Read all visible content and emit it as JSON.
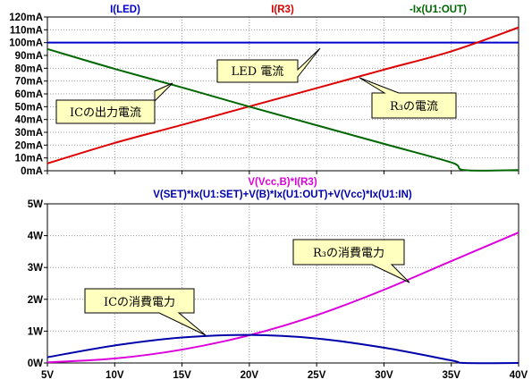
{
  "chart_data": [
    {
      "type": "line",
      "titles": [
        {
          "text": "I(LED)",
          "color": "#0000cc"
        },
        {
          "text": "I(R3)",
          "color": "#dd0000"
        },
        {
          "text": "-Ix(U1:OUT)",
          "color": "#006600"
        }
      ],
      "xlabel": "",
      "ylabel": "",
      "xlim": [
        5,
        40
      ],
      "ylim": [
        0,
        120
      ],
      "y_unit": "mA",
      "y_ticks": [
        0,
        10,
        20,
        30,
        40,
        50,
        60,
        70,
        80,
        90,
        100,
        110,
        120
      ],
      "y_tick_labels": [
        "0mA",
        "10mA",
        "20mA",
        "30mA",
        "40mA",
        "50mA",
        "60mA",
        "70mA",
        "80mA",
        "90mA",
        "100mA",
        "110mA",
        "120mA"
      ],
      "grid": true,
      "series": [
        {
          "name": "I(LED)",
          "color": "#0000cc",
          "x": [
            5,
            40
          ],
          "y": [
            100,
            100
          ]
        },
        {
          "name": "I(R3)",
          "color": "#dd0000",
          "x": [
            5,
            10,
            15,
            20,
            25,
            30,
            35,
            40
          ],
          "y": [
            5.7,
            21.7,
            35.8,
            50.2,
            64.5,
            78.9,
            93.2,
            111.8
          ]
        },
        {
          "name": "-Ix(U1:OUT)",
          "color": "#006600",
          "x": [
            5,
            10,
            15,
            20,
            25,
            30,
            35,
            36,
            40
          ],
          "y": [
            95,
            79.5,
            65,
            50,
            35.5,
            21,
            6.5,
            0.5,
            0.5
          ]
        }
      ],
      "annotations": [
        {
          "text": "LED 電流"
        },
        {
          "text": "ICの出力電流"
        },
        {
          "text": "R₃の電流"
        }
      ]
    },
    {
      "type": "line",
      "titles": [
        {
          "text": "V(Vcc,B)*I(R3)",
          "color": "#dd00dd"
        },
        {
          "text": "V(SET)*Ix(U1:SET)+V(B)*Ix(U1:OUT)+V(Vcc)*Ix(U1:IN)",
          "color": "#0000aa"
        }
      ],
      "xlabel": "",
      "ylabel": "",
      "xlim": [
        5,
        40
      ],
      "ylim": [
        0,
        5
      ],
      "x_ticks": [
        5,
        10,
        15,
        20,
        25,
        30,
        35,
        40
      ],
      "x_tick_labels": [
        "5V",
        "10V",
        "15V",
        "20V",
        "25V",
        "30V",
        "35V",
        "40V"
      ],
      "y_ticks": [
        0,
        1,
        2,
        3,
        4,
        5
      ],
      "y_tick_labels": [
        "0W",
        "1W",
        "2W",
        "3W",
        "4W",
        "5W"
      ],
      "grid": true,
      "series": [
        {
          "name": "V(Vcc,B)*I(R3)",
          "color": "#dd00dd",
          "x": [
            5,
            10,
            15,
            20,
            25,
            30,
            35,
            40
          ],
          "y": [
            0.02,
            0.14,
            0.42,
            0.87,
            1.5,
            2.3,
            3.2,
            4.1
          ]
        },
        {
          "name": "V(SET)*Ix(U1:SET)+V(B)*Ix(U1:OUT)+V(Vcc)*Ix(U1:IN)",
          "color": "#0000aa",
          "x": [
            5,
            10,
            15,
            20,
            25,
            30,
            35,
            36,
            40
          ],
          "y": [
            0.18,
            0.55,
            0.8,
            0.88,
            0.77,
            0.48,
            0.08,
            0.0,
            0.0
          ]
        }
      ],
      "annotations": [
        {
          "text": "R₃の消費電力"
        },
        {
          "text": "ICの消費電力"
        }
      ]
    }
  ]
}
